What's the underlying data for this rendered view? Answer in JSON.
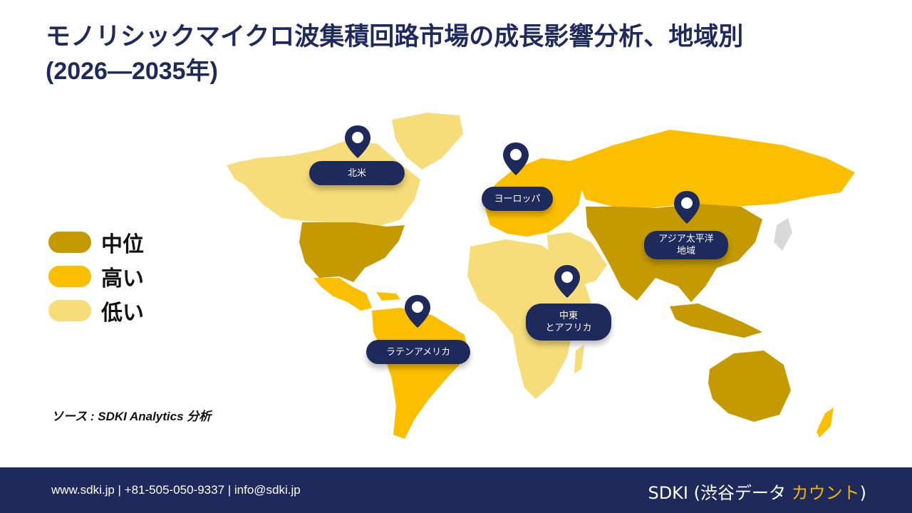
{
  "title": {
    "line1": "モノリシックマイクロ波集積回路市場の成長影響分析、地域別",
    "line2": "(2026—2035年)"
  },
  "legend": [
    {
      "label": "中位",
      "color": "#c49a00"
    },
    {
      "label": "高い",
      "color": "#fbbf00"
    },
    {
      "label": "低い",
      "color": "#f7dc7a"
    }
  ],
  "regions": [
    {
      "label": "北米",
      "growth": "低い"
    },
    {
      "label": "ヨーロッパ",
      "growth": "高い"
    },
    {
      "label": "アジア太平洋\n地域",
      "growth": "中位"
    },
    {
      "label": "中東\nとアフリカ",
      "growth": "低い"
    },
    {
      "label": "ラテンアメリカ",
      "growth": "高い"
    }
  ],
  "colors": {
    "navy": "#1f2a5c",
    "medium": "#c49a00",
    "high": "#fbbf00",
    "low": "#f7dc7a",
    "nodata": "#d9d9d9"
  },
  "source": "ソース : SDKI Analytics 分析",
  "footer": {
    "contact": "www.sdki.jp  | +81-505-050-9337 | info@sdki.jp",
    "brand_main": "SDKI (渋谷データ ",
    "brand_accent": "カウント",
    "brand_end": ")"
  }
}
